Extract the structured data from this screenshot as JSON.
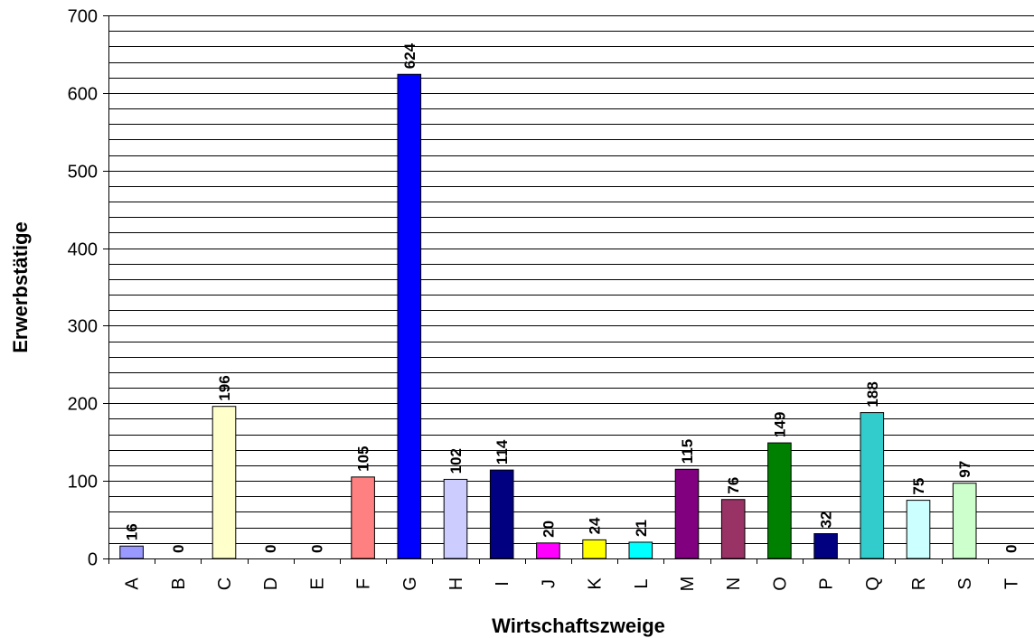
{
  "chart_data": {
    "type": "bar",
    "x_label": "Wirtschaftszweige",
    "y_label": "Erwerbstätige",
    "categories": [
      "A",
      "B",
      "C",
      "D",
      "E",
      "F",
      "G",
      "H",
      "I",
      "J",
      "K",
      "L",
      "M",
      "N",
      "O",
      "P",
      "Q",
      "R",
      "S",
      "T"
    ],
    "values": [
      16,
      0,
      196,
      0,
      0,
      105,
      624,
      102,
      114,
      20,
      24,
      21,
      115,
      76,
      149,
      32,
      188,
      75,
      97,
      0
    ],
    "colors": [
      "#9999ff",
      "#993366",
      "#ffffcc",
      "#ccffff",
      "#660066",
      "#ff8080",
      "#0000ff",
      "#ccccff",
      "#000080",
      "#ff00ff",
      "#ffff00",
      "#00ffff",
      "#800080",
      "#993366",
      "#008000",
      "#000080",
      "#33cccc",
      "#ccffff",
      "#ccffcc",
      "#ffff99"
    ],
    "ylim": [
      0,
      700
    ],
    "yticks": [
      0,
      100,
      200,
      300,
      400,
      500,
      600,
      700
    ],
    "ygrid": [
      20,
      40,
      60,
      80,
      100,
      120,
      140,
      160,
      180,
      200,
      220,
      240,
      260,
      280,
      300,
      320,
      340,
      360,
      380,
      400,
      420,
      440,
      460,
      480,
      500,
      520,
      540,
      560,
      580,
      600,
      620,
      640,
      660,
      680,
      700
    ],
    "grid": true
  }
}
